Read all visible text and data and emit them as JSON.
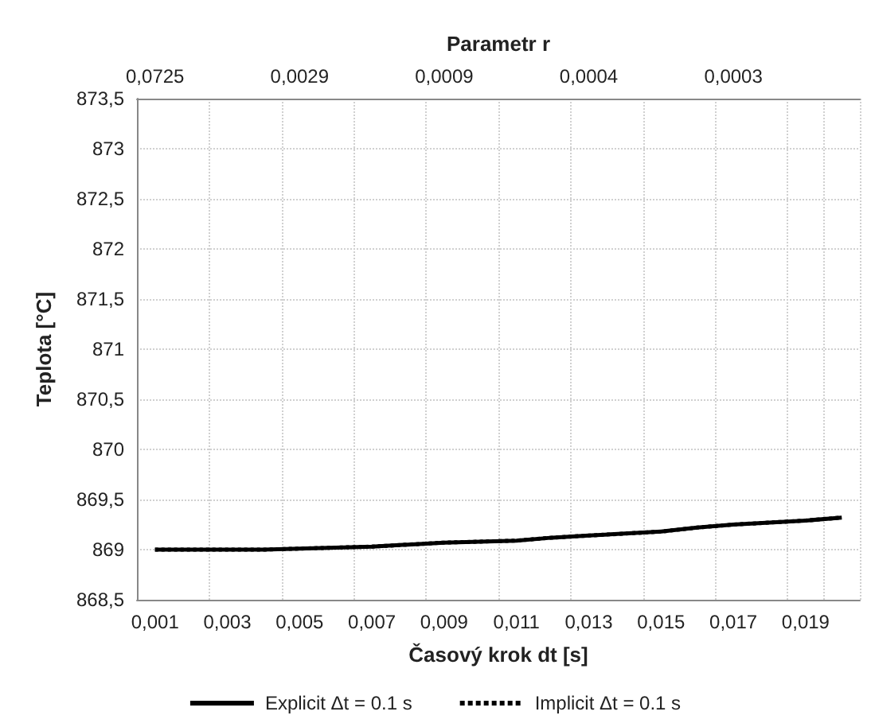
{
  "chart_data": {
    "type": "line",
    "xlabel": "Časový krok dt [s]",
    "ylabel": "Teplota [°C]",
    "x2label": "Parametr r",
    "categories": [
      "0,001",
      null,
      "0,003",
      null,
      "0,005",
      null,
      "0,007",
      null,
      "0,009",
      null,
      "0,011",
      null,
      "0,013",
      null,
      "0,015",
      null,
      "0,017",
      null,
      "0,019",
      null
    ],
    "annotations": [
      "0,0725",
      "0,0029",
      "0,0009",
      "0,0004",
      "0,0003"
    ],
    "series": [
      {
        "name": "Explicit Δt = 0.1 s",
        "color": "#000000",
        "line_style": "solid",
        "values": [
          869.0,
          869.0,
          869.0,
          869.0,
          869.01,
          869.02,
          869.03,
          869.05,
          869.07,
          869.08,
          869.09,
          869.12,
          869.14,
          869.16,
          869.18,
          869.22,
          869.25,
          869.27,
          869.29,
          869.32
        ]
      },
      {
        "name": "Implicit Δt = 0.1 s",
        "color": "#000000",
        "line_style": "dotted",
        "values": [
          869.0,
          869.0,
          869.0,
          869.0,
          869.01,
          869.02,
          869.03,
          869.05,
          869.07,
          869.08,
          869.09,
          869.12,
          869.14,
          869.16,
          869.18,
          869.22,
          869.25,
          869.27,
          869.29,
          869.32
        ]
      }
    ],
    "ylim": [
      868.5,
      873.5
    ],
    "yticks": [
      {
        "value": 868.5,
        "label": "868,5"
      },
      869,
      {
        "value": 869.5,
        "label": "869,5"
      },
      870,
      {
        "value": 870.5,
        "label": "870,5"
      },
      871,
      {
        "value": 871.5,
        "label": "871,5"
      },
      872,
      {
        "value": 872.5,
        "label": "872,5"
      },
      873,
      {
        "value": 873.5,
        "label": "873,5"
      }
    ],
    "grid": true,
    "legend": "bottom",
    "marker": "none"
  }
}
